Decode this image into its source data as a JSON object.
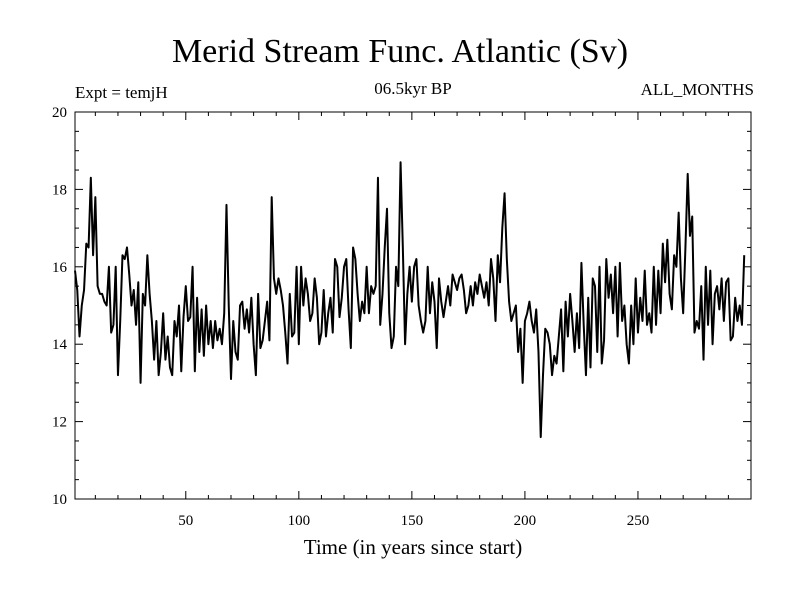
{
  "chart_data": {
    "type": "line",
    "title": "Merid Stream Func. Atlantic (Sv)",
    "subtitle_left": "Expt = temjH",
    "subtitle_center": "06.5kyr BP",
    "subtitle_right": "ALL_MONTHS",
    "xlabel": "Time (in years since start)",
    "ylabel": "",
    "xlim": [
      1,
      300
    ],
    "ylim": [
      10,
      20
    ],
    "xticks": [
      50,
      100,
      150,
      200,
      250
    ],
    "yticks": [
      10,
      12,
      14,
      16,
      18,
      20
    ],
    "grid": false,
    "series": [
      {
        "name": "Merid Stream Func. Atlantic",
        "x_start": 1,
        "x_step": 1,
        "values": [
          15.9,
          15.4,
          14.2,
          15.0,
          15.4,
          16.6,
          16.5,
          18.3,
          16.3,
          17.8,
          15.5,
          15.3,
          15.3,
          15.1,
          15.0,
          16.0,
          14.3,
          14.5,
          16.0,
          13.2,
          14.6,
          16.3,
          16.2,
          16.5,
          15.8,
          15.0,
          15.4,
          14.5,
          15.6,
          13.0,
          15.3,
          15.0,
          16.3,
          15.3,
          14.6,
          13.6,
          14.6,
          13.2,
          13.8,
          14.8,
          13.6,
          14.2,
          13.4,
          13.2,
          14.6,
          14.2,
          15.0,
          13.3,
          14.7,
          15.5,
          14.6,
          14.7,
          16.0,
          13.3,
          15.2,
          13.8,
          14.9,
          13.7,
          15.0,
          14.0,
          14.6,
          13.9,
          14.6,
          14.1,
          14.4,
          14.0,
          14.8,
          17.6,
          15.0,
          13.1,
          14.6,
          13.8,
          13.6,
          15.0,
          15.1,
          14.4,
          14.9,
          14.3,
          15.2,
          14.0,
          13.2,
          15.3,
          13.9,
          14.1,
          14.6,
          15.1,
          14.1,
          17.8,
          15.7,
          15.3,
          15.7,
          15.4,
          15.0,
          14.3,
          13.5,
          15.3,
          14.2,
          14.3,
          16.0,
          14.0,
          16.0,
          15.0,
          15.7,
          15.3,
          14.6,
          14.8,
          15.7,
          15.2,
          14.0,
          14.3,
          15.4,
          14.2,
          14.8,
          15.2,
          14.3,
          16.2,
          16.0,
          14.7,
          15.2,
          16.0,
          16.2,
          14.9,
          13.9,
          16.5,
          16.2,
          15.3,
          14.6,
          15.1,
          14.8,
          16.0,
          14.8,
          15.5,
          15.3,
          15.5,
          18.3,
          14.5,
          15.3,
          16.5,
          17.5,
          14.8,
          13.9,
          14.2,
          16.0,
          15.5,
          18.7,
          16.5,
          14.0,
          15.3,
          16.0,
          15.1,
          16.0,
          16.2,
          15.0,
          14.6,
          14.3,
          14.6,
          16.0,
          14.8,
          15.6,
          15.1,
          13.9,
          15.7,
          15.1,
          14.7,
          15.1,
          15.5,
          15.0,
          15.8,
          15.6,
          15.4,
          15.7,
          15.8,
          15.4,
          14.8,
          15.0,
          15.5,
          15.0,
          15.6,
          15.3,
          15.8,
          15.5,
          15.2,
          15.6,
          15.0,
          16.2,
          15.7,
          14.6,
          16.3,
          15.6,
          17.0,
          17.9,
          16.2,
          15.1,
          14.6,
          14.8,
          15.0,
          13.8,
          14.4,
          13.0,
          14.6,
          14.8,
          15.1,
          14.6,
          14.3,
          14.9,
          13.8,
          11.6,
          13.2,
          14.4,
          14.3,
          14.0,
          13.2,
          13.7,
          13.5,
          14.2,
          14.9,
          13.3,
          15.1,
          14.2,
          15.3,
          14.6,
          13.8,
          14.8,
          13.9,
          16.1,
          14.5,
          13.2,
          15.2,
          13.4,
          15.7,
          15.5,
          13.8,
          16.0,
          13.5,
          14.1,
          16.2,
          15.2,
          15.8,
          14.8,
          16.0,
          14.2,
          16.1,
          14.6,
          15.0,
          14.0,
          13.5,
          15.0,
          14.0,
          15.7,
          14.3,
          15.2,
          14.6,
          15.9,
          14.5,
          14.8,
          14.3,
          16.0,
          14.5,
          15.9,
          14.8,
          16.6,
          15.6,
          16.7,
          15.3,
          14.9,
          16.3,
          16.0,
          17.4,
          15.7,
          14.8,
          16.5,
          18.4,
          16.8,
          17.3,
          14.3,
          14.6,
          14.4,
          15.5,
          13.6,
          16.0,
          14.5,
          15.9,
          14.0,
          15.3,
          15.5,
          14.9,
          15.7,
          14.6,
          15.6,
          15.7,
          14.1,
          14.2,
          15.2,
          14.6,
          15.0,
          14.5,
          16.3
        ]
      }
    ]
  }
}
